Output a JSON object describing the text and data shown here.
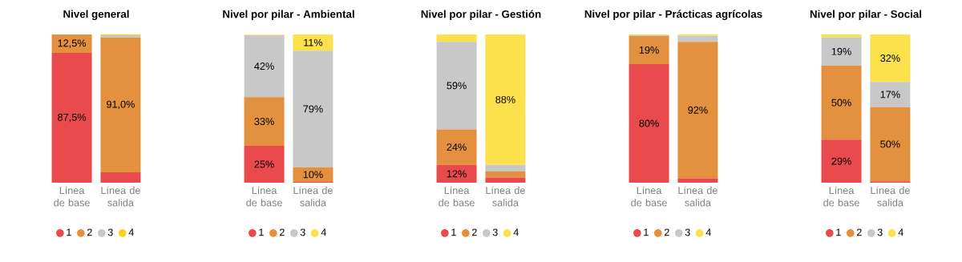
{
  "chart_data": [
    {
      "type": "bar",
      "stacked": true,
      "title": "Nivel general",
      "categories": [
        "Línea de base",
        "Línea de salida"
      ],
      "legend": "bottom",
      "series": [
        {
          "name": "1",
          "color": "#e84a4e",
          "values": [
            87.5,
            7
          ],
          "value_labels": [
            "87,5%",
            null
          ]
        },
        {
          "name": "2",
          "color": "#e3913e",
          "values": [
            12.5,
            91
          ],
          "value_labels": [
            "12,5%",
            "91,0%"
          ]
        },
        {
          "name": "3",
          "color": "#c8c8c8",
          "values": [
            0,
            1.5
          ],
          "value_labels": [
            null,
            null
          ]
        },
        {
          "name": "4",
          "color": "#fcd21e",
          "values": [
            0,
            0.5
          ],
          "value_labels": [
            null,
            null
          ]
        }
      ]
    },
    {
      "type": "bar",
      "stacked": true,
      "title": "Nivel por pilar - Ambiental",
      "categories": [
        "Línea de base",
        "Línea de salida"
      ],
      "legend": "bottom",
      "series": [
        {
          "name": "1",
          "color": "#e84a4e",
          "values": [
            25,
            0.5
          ],
          "value_labels": [
            "25%",
            null
          ]
        },
        {
          "name": "2",
          "color": "#e3913e",
          "values": [
            33,
            10
          ],
          "value_labels": [
            "33%",
            "10%"
          ]
        },
        {
          "name": "3",
          "color": "#c8c8c8",
          "values": [
            42,
            79
          ],
          "value_labels": [
            "42%",
            "79%"
          ]
        },
        {
          "name": "4",
          "color": "#fce04c",
          "values": [
            0.4,
            11
          ],
          "value_labels": [
            null,
            "11%"
          ]
        }
      ]
    },
    {
      "type": "bar",
      "stacked": true,
      "title": "Nivel por pilar - Gestión",
      "categories": [
        "Línea de base",
        "Línea de salida"
      ],
      "legend": "bottom",
      "series": [
        {
          "name": "1",
          "color": "#e84a4e",
          "values": [
            12,
            3.5
          ],
          "value_labels": [
            "12%",
            null
          ]
        },
        {
          "name": "2",
          "color": "#e3913e",
          "values": [
            24,
            4
          ],
          "value_labels": [
            "24%",
            null
          ]
        },
        {
          "name": "3",
          "color": "#c8c8c8",
          "values": [
            59,
            4.5
          ],
          "value_labels": [
            "59%",
            null
          ]
        },
        {
          "name": "4",
          "color": "#fce04c",
          "values": [
            5,
            88
          ],
          "value_labels": [
            null,
            "88%"
          ]
        }
      ]
    },
    {
      "type": "bar",
      "stacked": true,
      "title": "Nivel por pilar - Prácticas agrícolas",
      "categories": [
        "Línea de base",
        "Línea de salida"
      ],
      "legend": "bottom",
      "series": [
        {
          "name": "1",
          "color": "#e84a4e",
          "values": [
            80,
            3
          ],
          "value_labels": [
            "80%",
            null
          ]
        },
        {
          "name": "2",
          "color": "#e3913e",
          "values": [
            19,
            92
          ],
          "value_labels": [
            "19%",
            "92%"
          ]
        },
        {
          "name": "3",
          "color": "#c8c8c8",
          "values": [
            0.5,
            4
          ],
          "value_labels": [
            null,
            null
          ]
        },
        {
          "name": "4",
          "color": "#fce04c",
          "values": [
            0.5,
            1
          ],
          "value_labels": [
            null,
            null
          ]
        }
      ]
    },
    {
      "type": "bar",
      "stacked": true,
      "title": "Nivel por pilar - Social",
      "categories": [
        "Línea de base",
        "Línea de salida"
      ],
      "legend": "bottom",
      "series": [
        {
          "name": "1",
          "color": "#e84a4e",
          "values": [
            29,
            1
          ],
          "value_labels": [
            "29%",
            null
          ]
        },
        {
          "name": "2",
          "color": "#e3913e",
          "values": [
            50,
            50
          ],
          "value_labels": [
            "50%",
            "50%"
          ]
        },
        {
          "name": "3",
          "color": "#c8c8c8",
          "values": [
            19,
            17
          ],
          "value_labels": [
            "19%",
            "17%"
          ]
        },
        {
          "name": "4",
          "color": "#fce04c",
          "values": [
            2,
            32
          ],
          "value_labels": [
            null,
            "32%"
          ]
        }
      ]
    }
  ]
}
